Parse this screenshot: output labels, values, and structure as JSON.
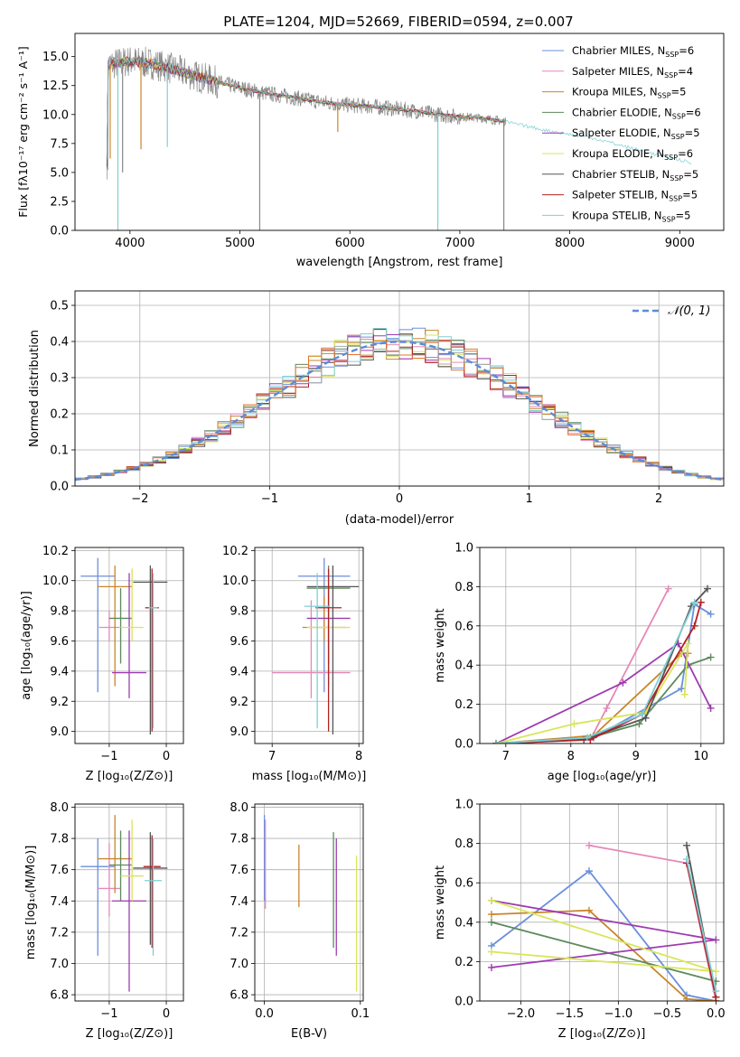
{
  "figure_title": "PLATE=1204, MJD=52669, FIBERID=0594, z=0.007",
  "colors": {
    "series": [
      "#6a8fdc",
      "#e589b8",
      "#c8862a",
      "#5d8a5d",
      "#9d3bb0",
      "#d8e65a",
      "#555555",
      "#b22222",
      "#7ecfd6"
    ],
    "hist_extra": [
      "#e8732a",
      "#aaaaaa"
    ],
    "obs": "#888888",
    "normal": "#5b8bd6"
  },
  "panels": {
    "spectrum": {
      "xlabel": "wavelength [Angstrom, rest frame]",
      "ylabel": "Flux [fλ10⁻¹⁷ erg cm⁻² s⁻¹ A⁻¹]",
      "xticks": [
        "4000",
        "5000",
        "6000",
        "7000",
        "8000",
        "9000"
      ],
      "yticks": [
        "0.0",
        "2.5",
        "5.0",
        "7.5",
        "10.0",
        "12.5",
        "15.0"
      ],
      "legend": [
        {
          "name": "Chabrier MILES",
          "n": "6"
        },
        {
          "name": "Salpeter MILES",
          "n": "4"
        },
        {
          "name": "Kroupa MILES",
          "n": "5"
        },
        {
          "name": "Chabrier ELODIE",
          "n": "6"
        },
        {
          "name": "Salpeter ELODIE",
          "n": "5"
        },
        {
          "name": "Kroupa ELODIE",
          "n": "6"
        },
        {
          "name": "Chabrier STELIB",
          "n": "5"
        },
        {
          "name": "Salpeter STELIB",
          "n": "5"
        },
        {
          "name": "Kroupa STELIB",
          "n": "5"
        }
      ],
      "legend_n_prefix": "N",
      "legend_n_sub": "SSP"
    },
    "histogram": {
      "xlabel": "(data-model)/error",
      "ylabel": "Normed distribution",
      "xticks": [
        "−2",
        "−1",
        "0",
        "1",
        "2"
      ],
      "yticks": [
        "0.0",
        "0.1",
        "0.2",
        "0.3",
        "0.4",
        "0.5"
      ],
      "legend": "𝒩(0, 1)"
    },
    "age_vs_Z": {
      "xlabel": "Z [log₁₀(Z/Z⊙)]",
      "ylabel": "age  [log₁₀(age/yr)]",
      "xticks": [
        "−1",
        "0"
      ],
      "yticks": [
        "9.0",
        "9.2",
        "9.4",
        "9.6",
        "9.8",
        "10.0",
        "10.2"
      ]
    },
    "age_vs_mass": {
      "xlabel": "mass [log₁₀(M/M⊙)]",
      "xticks": [
        "7",
        "8"
      ],
      "yticks": [
        "9.0",
        "9.2",
        "9.4",
        "9.6",
        "9.8",
        "10.0",
        "10.2"
      ]
    },
    "weight_vs_age": {
      "xlabel": "age  [log₁₀(age/yr)]",
      "ylabel": "mass weight",
      "xticks": [
        "7",
        "8",
        "9",
        "10"
      ],
      "yticks": [
        "0.0",
        "0.2",
        "0.4",
        "0.6",
        "0.8",
        "1.0"
      ]
    },
    "mass_vs_Z": {
      "xlabel": "Z [log₁₀(Z/Z⊙)]",
      "ylabel": "mass [log₁₀(M/M⊙)]",
      "xticks": [
        "−1",
        "0"
      ],
      "yticks": [
        "6.8",
        "7.0",
        "7.2",
        "7.4",
        "7.6",
        "7.8",
        "8.0"
      ]
    },
    "mass_vs_EBV": {
      "xlabel": "E(B-V)",
      "xticks": [
        "0.0",
        "0.1"
      ],
      "yticks": [
        "6.8",
        "7.0",
        "7.2",
        "7.4",
        "7.6",
        "7.8",
        "8.0"
      ]
    },
    "weight_vs_Z": {
      "xlabel": "Z [log₁₀(Z/Z⊙)]",
      "ylabel": "mass weight",
      "xticks": [
        "−2.0",
        "−1.5",
        "−1.0",
        "−0.5",
        "0.0"
      ],
      "yticks": [
        "0.0",
        "0.2",
        "0.4",
        "0.6",
        "0.8",
        "1.0"
      ]
    }
  },
  "chart_data": [
    {
      "type": "line",
      "xlim": [
        3500,
        9400
      ],
      "ylim": [
        0,
        17
      ],
      "grid": false,
      "legend_position": "top-right",
      "continuum": {
        "x": [
          3800,
          4000,
          4200,
          4400,
          4600,
          4800,
          5000,
          5200,
          5400,
          5600,
          5800,
          6000,
          6200,
          6400,
          6600,
          6800,
          7000,
          7200,
          7400,
          7600,
          7800,
          8000,
          8200,
          8400,
          8600,
          8800,
          9000,
          9100
        ],
        "y": [
          14.3,
          14.6,
          14.4,
          13.9,
          13.3,
          12.8,
          12.3,
          11.9,
          11.6,
          11.3,
          11.0,
          10.8,
          10.7,
          10.5,
          10.3,
          10.0,
          9.8,
          9.7,
          9.4,
          9.0,
          8.6,
          8.3,
          8.0,
          7.5,
          7.0,
          6.5,
          6.1,
          5.8
        ]
      },
      "absorption_dips": [
        {
          "x": 3820,
          "y": 6.2
        },
        {
          "x": 3890,
          "y": 0.0
        },
        {
          "x": 3933,
          "y": 5.0
        },
        {
          "x": 4100,
          "y": 7.0
        },
        {
          "x": 4340,
          "y": 7.2
        },
        {
          "x": 5180,
          "y": 0.0
        },
        {
          "x": 5890,
          "y": 8.5
        },
        {
          "x": 6800,
          "y": 0.0
        },
        {
          "x": 7400,
          "y": 0.0
        }
      ]
    },
    {
      "type": "bar",
      "xlim": [
        -2.5,
        2.5
      ],
      "ylim": [
        0,
        0.54
      ],
      "grid": true,
      "legend_position": "top-right",
      "bin_edges_start": -2.5,
      "bin_width": 0.1,
      "normal_curve": {
        "mean": 0,
        "sigma": 1
      }
    },
    {
      "type": "scatter",
      "title": "",
      "xlim": [
        -1.6,
        0.3
      ],
      "ylim": [
        8.92,
        10.22
      ],
      "grid": true,
      "points": [
        {
          "x": -1.2,
          "y": 10.03,
          "xerr": 0.3,
          "ylo": 9.26,
          "yhi": 10.15
        },
        {
          "x": -1.0,
          "y": 9.69,
          "xerr": 0.18,
          "ylo": 9.6,
          "yhi": 9.8
        },
        {
          "x": -0.9,
          "y": 9.96,
          "xerr": 0.3,
          "ylo": 9.3,
          "yhi": 10.1
        },
        {
          "x": -0.8,
          "y": 9.75,
          "xerr": 0.2,
          "ylo": 9.45,
          "yhi": 9.95
        },
        {
          "x": -0.65,
          "y": 9.39,
          "xerr": 0.3,
          "ylo": 9.22,
          "yhi": 10.05
        },
        {
          "x": -0.6,
          "y": 9.69,
          "xerr": 0.2,
          "ylo": 9.6,
          "yhi": 10.08
        },
        {
          "x": -0.28,
          "y": 9.99,
          "xerr": 0.3,
          "ylo": 8.98,
          "yhi": 10.1
        },
        {
          "x": -0.25,
          "y": 9.82,
          "xerr": 0.12,
          "ylo": 9.0,
          "yhi": 10.08
        },
        {
          "x": -0.23,
          "y": 9.82,
          "xerr": 0.08,
          "ylo": 9.02,
          "yhi": 10.05
        }
      ]
    },
    {
      "type": "scatter",
      "xlim": [
        6.8,
        8.05
      ],
      "ylim": [
        8.92,
        10.22
      ],
      "grid": true,
      "points": [
        {
          "x": 7.6,
          "y": 10.03,
          "xerr": 0.3,
          "ylo": 9.26,
          "yhi": 10.15
        },
        {
          "x": 7.45,
          "y": 9.39,
          "xerr": 0.45,
          "ylo": 9.22,
          "yhi": 9.87
        },
        {
          "x": 7.6,
          "y": 9.69,
          "xerr": 0.25,
          "ylo": 9.6,
          "yhi": 9.9
        },
        {
          "x": 7.65,
          "y": 9.95,
          "xerr": 0.25,
          "ylo": 9.3,
          "yhi": 10.1
        },
        {
          "x": 7.65,
          "y": 9.75,
          "xerr": 0.25,
          "ylo": 9.45,
          "yhi": 9.95
        },
        {
          "x": 7.65,
          "y": 9.69,
          "xerr": 0.25,
          "ylo": 9.6,
          "yhi": 10.08
        },
        {
          "x": 7.7,
          "y": 9.96,
          "xerr": 0.3,
          "ylo": 8.98,
          "yhi": 10.1
        },
        {
          "x": 7.65,
          "y": 9.82,
          "xerr": 0.15,
          "ylo": 9.0,
          "yhi": 10.08
        },
        {
          "x": 7.52,
          "y": 9.83,
          "xerr": 0.15,
          "ylo": 9.02,
          "yhi": 10.05
        }
      ]
    },
    {
      "type": "line",
      "xlim": [
        6.6,
        10.35
      ],
      "ylim": [
        0,
        1
      ],
      "grid": true,
      "series": [
        {
          "x": [
            6.85,
            8.35,
            9.7,
            9.9,
            10.15
          ],
          "y": [
            0.0,
            0.03,
            0.28,
            0.71,
            0.66
          ]
        },
        {
          "x": [
            6.85,
            8.3,
            8.55,
            9.5
          ],
          "y": [
            0.0,
            0.02,
            0.18,
            0.79
          ]
        },
        {
          "x": [
            6.85,
            8.35,
            9.7,
            9.8
          ],
          "y": [
            0.0,
            0.04,
            0.46,
            0.46
          ]
        },
        {
          "x": [
            6.85,
            8.3,
            9.05,
            9.8,
            10.15
          ],
          "y": [
            0.0,
            0.03,
            0.1,
            0.4,
            0.44
          ]
        },
        {
          "x": [
            6.85,
            8.8,
            9.65,
            10.15
          ],
          "y": [
            0.0,
            0.31,
            0.51,
            0.18
          ]
        },
        {
          "x": [
            6.85,
            8.05,
            9.15,
            9.8,
            9.75
          ],
          "y": [
            0.0,
            0.1,
            0.16,
            0.51,
            0.25
          ]
        },
        {
          "x": [
            6.85,
            8.2,
            9.15,
            9.85,
            10.1
          ],
          "y": [
            0.0,
            0.02,
            0.13,
            0.7,
            0.79
          ]
        },
        {
          "x": [
            6.85,
            8.3,
            9.1,
            9.9,
            10.0
          ],
          "y": [
            0.0,
            0.02,
            0.15,
            0.6,
            0.72
          ]
        },
        {
          "x": [
            6.85,
            8.25,
            9.1,
            9.9
          ],
          "y": [
            0.0,
            0.03,
            0.15,
            0.72
          ]
        }
      ]
    },
    {
      "type": "scatter",
      "xlim": [
        -1.6,
        0.3
      ],
      "ylim": [
        6.76,
        8.02
      ],
      "grid": true,
      "points": [
        {
          "x": -1.2,
          "y": 7.62,
          "xerr": 0.3,
          "ylo": 7.05,
          "yhi": 7.8
        },
        {
          "x": -1.0,
          "y": 7.48,
          "xerr": 0.2,
          "ylo": 7.3,
          "yhi": 7.77
        },
        {
          "x": -0.9,
          "y": 7.67,
          "xerr": 0.3,
          "ylo": 7.45,
          "yhi": 7.95
        },
        {
          "x": -0.8,
          "y": 7.63,
          "xerr": 0.2,
          "ylo": 7.4,
          "yhi": 7.85
        },
        {
          "x": -0.65,
          "y": 7.4,
          "xerr": 0.3,
          "ylo": 6.82,
          "yhi": 7.85
        },
        {
          "x": -0.6,
          "y": 7.56,
          "xerr": 0.2,
          "ylo": 7.4,
          "yhi": 7.92
        },
        {
          "x": -0.28,
          "y": 7.61,
          "xerr": 0.3,
          "ylo": 7.12,
          "yhi": 7.84
        },
        {
          "x": -0.25,
          "y": 7.62,
          "xerr": 0.15,
          "ylo": 7.1,
          "yhi": 7.82
        },
        {
          "x": -0.23,
          "y": 7.53,
          "xerr": 0.15,
          "ylo": 7.05,
          "yhi": 7.8
        }
      ]
    },
    {
      "type": "scatter",
      "xlim": [
        -0.01,
        0.103
      ],
      "ylim": [
        6.76,
        8.02
      ],
      "grid": true,
      "points": [
        {
          "x": 0.0,
          "y": 7.7,
          "ylo": 7.4,
          "yhi": 7.95
        },
        {
          "x": 0.001,
          "y": 7.6,
          "ylo": 7.35,
          "yhi": 7.92
        },
        {
          "x": 0.036,
          "y": 7.56,
          "ylo": 7.36,
          "yhi": 7.76
        },
        {
          "x": 0.072,
          "y": 7.5,
          "ylo": 7.1,
          "yhi": 7.84
        },
        {
          "x": 0.075,
          "y": 7.45,
          "ylo": 7.05,
          "yhi": 7.8
        },
        {
          "x": 0.096,
          "y": 7.25,
          "ylo": 6.82,
          "yhi": 7.69
        }
      ]
    },
    {
      "type": "line",
      "xlim": [
        -2.42,
        0.08
      ],
      "ylim": [
        0,
        1
      ],
      "grid": true,
      "series": [
        {
          "x": [
            -2.3,
            -1.3,
            -0.3,
            0.0
          ],
          "y": [
            0.28,
            0.66,
            0.03,
            0.0
          ]
        },
        {
          "x": [
            -1.3,
            -0.3,
            0.0
          ],
          "y": [
            0.79,
            0.7,
            0.0
          ]
        },
        {
          "x": [
            -2.3,
            -1.3,
            -0.3,
            0.0
          ],
          "y": [
            0.44,
            0.46,
            0.01,
            0.0
          ]
        },
        {
          "x": [
            -2.3,
            0.0
          ],
          "y": [
            0.4,
            0.1
          ]
        },
        {
          "x": [
            -2.3,
            0.0,
            -2.3
          ],
          "y": [
            0.51,
            0.31,
            0.17
          ]
        },
        {
          "x": [
            -2.3,
            0.0,
            -2.3
          ],
          "y": [
            0.51,
            0.15,
            0.25
          ]
        },
        {
          "x": [
            -0.3,
            0.0
          ],
          "y": [
            0.79,
            0.02
          ]
        },
        {
          "x": [
            -0.3,
            0.0
          ],
          "y": [
            0.7,
            0.02
          ]
        },
        {
          "x": [
            -0.3,
            0.0
          ],
          "y": [
            0.72,
            0.05
          ]
        }
      ]
    }
  ]
}
